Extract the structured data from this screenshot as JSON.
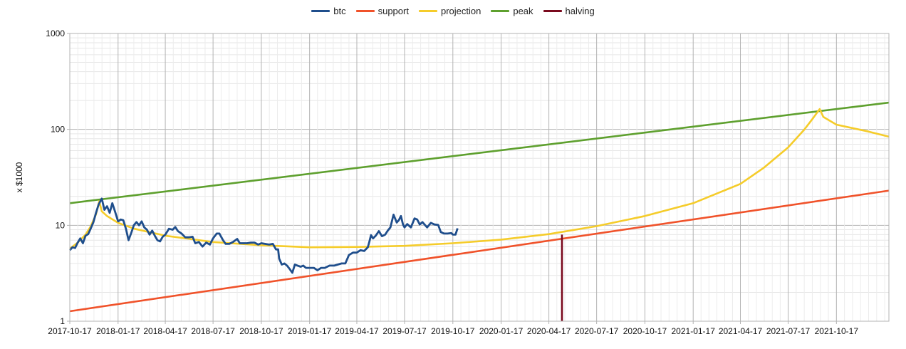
{
  "chart_data": {
    "type": "line",
    "title": "",
    "xlabel": "",
    "ylabel": "x $1000",
    "yscale": "log",
    "ylim": [
      1,
      1000
    ],
    "xlim": [
      "2017-10-17",
      "2022-01-25"
    ],
    "grid": true,
    "legend": "top-center",
    "x_tick_labels": [
      "2017-10-17",
      "2018-01-17",
      "2018-04-17",
      "2018-07-17",
      "2018-10-17",
      "2019-01-17",
      "2019-04-17",
      "2019-07-17",
      "2019-10-17",
      "2020-01-17",
      "2020-04-17",
      "2020-07-17",
      "2020-10-17",
      "2021-01-17",
      "2021-04-17",
      "2021-07-17",
      "2021-10-17"
    ],
    "y_tick_labels": [
      "1",
      "10",
      "100",
      "1000"
    ],
    "legend_entries": [
      {
        "key": "btc",
        "label": "btc",
        "color": "#1f4e8c"
      },
      {
        "key": "support",
        "label": "support",
        "color": "#f0522a"
      },
      {
        "key": "projection",
        "label": "projection",
        "color": "#f5cc2a"
      },
      {
        "key": "peak",
        "label": "peak",
        "color": "#5ea02e"
      },
      {
        "key": "halving",
        "label": "halving",
        "color": "#7a0a1e"
      }
    ],
    "series": [
      {
        "name": "btc",
        "color": "#1f4e8c",
        "points": [
          [
            "2017-10-17",
            5.5
          ],
          [
            "2017-10-22",
            5.9
          ],
          [
            "2017-10-27",
            5.8
          ],
          [
            "2017-11-01",
            6.6
          ],
          [
            "2017-11-06",
            7.3
          ],
          [
            "2017-11-11",
            6.5
          ],
          [
            "2017-11-16",
            7.8
          ],
          [
            "2017-11-21",
            8.1
          ],
          [
            "2017-11-26",
            9.3
          ],
          [
            "2017-12-01",
            10.8
          ],
          [
            "2017-12-06",
            13.5
          ],
          [
            "2017-12-11",
            16.5
          ],
          [
            "2017-12-17",
            19.0
          ],
          [
            "2017-12-22",
            14.5
          ],
          [
            "2017-12-27",
            15.8
          ],
          [
            "2018-01-01",
            13.5
          ],
          [
            "2018-01-06",
            17.0
          ],
          [
            "2018-01-11",
            14.0
          ],
          [
            "2018-01-17",
            11.0
          ],
          [
            "2018-01-22",
            11.5
          ],
          [
            "2018-01-27",
            11.3
          ],
          [
            "2018-02-01",
            9.2
          ],
          [
            "2018-02-06",
            7.0
          ],
          [
            "2018-02-11",
            8.3
          ],
          [
            "2018-02-16",
            10.0
          ],
          [
            "2018-02-21",
            10.8
          ],
          [
            "2018-02-26",
            10.0
          ],
          [
            "2018-03-03",
            11.0
          ],
          [
            "2018-03-08",
            9.5
          ],
          [
            "2018-03-13",
            9.0
          ],
          [
            "2018-03-18",
            8.0
          ],
          [
            "2018-03-23",
            8.8
          ],
          [
            "2018-03-28",
            7.8
          ],
          [
            "2018-04-02",
            7.0
          ],
          [
            "2018-04-07",
            6.8
          ],
          [
            "2018-04-12",
            7.6
          ],
          [
            "2018-04-17",
            8.0
          ],
          [
            "2018-04-24",
            9.2
          ],
          [
            "2018-05-01",
            9.0
          ],
          [
            "2018-05-06",
            9.6
          ],
          [
            "2018-05-11",
            8.7
          ],
          [
            "2018-05-18",
            8.2
          ],
          [
            "2018-05-25",
            7.5
          ],
          [
            "2018-06-01",
            7.5
          ],
          [
            "2018-06-08",
            7.6
          ],
          [
            "2018-06-13",
            6.5
          ],
          [
            "2018-06-20",
            6.7
          ],
          [
            "2018-06-27",
            6.0
          ],
          [
            "2018-07-04",
            6.6
          ],
          [
            "2018-07-11",
            6.3
          ],
          [
            "2018-07-17",
            7.3
          ],
          [
            "2018-07-24",
            8.2
          ],
          [
            "2018-07-29",
            8.2
          ],
          [
            "2018-08-05",
            7.0
          ],
          [
            "2018-08-10",
            6.4
          ],
          [
            "2018-08-17",
            6.4
          ],
          [
            "2018-08-24",
            6.7
          ],
          [
            "2018-09-01",
            7.2
          ],
          [
            "2018-09-06",
            6.5
          ],
          [
            "2018-09-13",
            6.5
          ],
          [
            "2018-09-20",
            6.5
          ],
          [
            "2018-09-27",
            6.6
          ],
          [
            "2018-10-04",
            6.6
          ],
          [
            "2018-10-11",
            6.3
          ],
          [
            "2018-10-17",
            6.5
          ],
          [
            "2018-10-24",
            6.4
          ],
          [
            "2018-11-01",
            6.3
          ],
          [
            "2018-11-08",
            6.4
          ],
          [
            "2018-11-14",
            5.6
          ],
          [
            "2018-11-18",
            5.6
          ],
          [
            "2018-11-20",
            4.5
          ],
          [
            "2018-11-25",
            3.9
          ],
          [
            "2018-11-30",
            4.0
          ],
          [
            "2018-12-05",
            3.8
          ],
          [
            "2018-12-10",
            3.5
          ],
          [
            "2018-12-15",
            3.2
          ],
          [
            "2018-12-20",
            3.9
          ],
          [
            "2018-12-25",
            3.8
          ],
          [
            "2018-12-31",
            3.7
          ],
          [
            "2019-01-05",
            3.8
          ],
          [
            "2019-01-10",
            3.6
          ],
          [
            "2019-01-17",
            3.6
          ],
          [
            "2019-01-25",
            3.6
          ],
          [
            "2019-02-01",
            3.4
          ],
          [
            "2019-02-08",
            3.6
          ],
          [
            "2019-02-15",
            3.6
          ],
          [
            "2019-02-24",
            3.8
          ],
          [
            "2019-03-05",
            3.8
          ],
          [
            "2019-03-12",
            3.9
          ],
          [
            "2019-03-19",
            4.0
          ],
          [
            "2019-03-26",
            4.0
          ],
          [
            "2019-04-02",
            4.9
          ],
          [
            "2019-04-10",
            5.2
          ],
          [
            "2019-04-17",
            5.2
          ],
          [
            "2019-04-24",
            5.5
          ],
          [
            "2019-05-01",
            5.4
          ],
          [
            "2019-05-08",
            5.9
          ],
          [
            "2019-05-11",
            6.8
          ],
          [
            "2019-05-14",
            7.9
          ],
          [
            "2019-05-18",
            7.3
          ],
          [
            "2019-05-23",
            7.8
          ],
          [
            "2019-05-29",
            8.7
          ],
          [
            "2019-06-04",
            7.7
          ],
          [
            "2019-06-10",
            8.0
          ],
          [
            "2019-06-15",
            8.8
          ],
          [
            "2019-06-20",
            9.5
          ],
          [
            "2019-06-26",
            12.9
          ],
          [
            "2019-07-02",
            10.7
          ],
          [
            "2019-07-06",
            11.3
          ],
          [
            "2019-07-10",
            12.5
          ],
          [
            "2019-07-14",
            10.2
          ],
          [
            "2019-07-17",
            9.5
          ],
          [
            "2019-07-22",
            10.3
          ],
          [
            "2019-07-29",
            9.5
          ],
          [
            "2019-08-05",
            11.8
          ],
          [
            "2019-08-10",
            11.5
          ],
          [
            "2019-08-15",
            10.2
          ],
          [
            "2019-08-20",
            10.8
          ],
          [
            "2019-08-29",
            9.5
          ],
          [
            "2019-09-05",
            10.6
          ],
          [
            "2019-09-12",
            10.2
          ],
          [
            "2019-09-19",
            10.1
          ],
          [
            "2019-09-24",
            8.5
          ],
          [
            "2019-09-30",
            8.2
          ],
          [
            "2019-10-07",
            8.2
          ],
          [
            "2019-10-14",
            8.3
          ],
          [
            "2019-10-17",
            8.0
          ],
          [
            "2019-10-22",
            8.0
          ],
          [
            "2019-10-26",
            9.3
          ]
        ]
      },
      {
        "name": "support",
        "color": "#f0522a",
        "points": [
          [
            "2017-10-17",
            1.27
          ],
          [
            "2022-01-25",
            23.0
          ]
        ]
      },
      {
        "name": "projection",
        "color": "#f5cc2a",
        "points": [
          [
            "2017-10-17",
            5.7
          ],
          [
            "2017-11-01",
            6.6
          ],
          [
            "2017-11-16",
            8.0
          ],
          [
            "2017-11-26",
            9.8
          ],
          [
            "2017-12-06",
            13.0
          ],
          [
            "2017-12-12",
            17.8
          ],
          [
            "2017-12-17",
            14.0
          ],
          [
            "2017-12-27",
            12.5
          ],
          [
            "2018-01-17",
            10.6
          ],
          [
            "2018-02-17",
            9.2
          ],
          [
            "2018-04-17",
            7.8
          ],
          [
            "2018-07-17",
            6.7
          ],
          [
            "2018-10-17",
            6.2
          ],
          [
            "2019-01-17",
            5.9
          ],
          [
            "2019-04-17",
            5.95
          ],
          [
            "2019-07-17",
            6.1
          ],
          [
            "2019-10-17",
            6.5
          ],
          [
            "2020-01-17",
            7.1
          ],
          [
            "2020-04-17",
            8.1
          ],
          [
            "2020-07-17",
            9.8
          ],
          [
            "2020-10-17",
            12.5
          ],
          [
            "2021-01-17",
            17.0
          ],
          [
            "2021-04-17",
            27.0
          ],
          [
            "2021-06-01",
            40.0
          ],
          [
            "2021-07-17",
            65.0
          ],
          [
            "2021-08-17",
            100.0
          ],
          [
            "2021-09-02",
            130.0
          ],
          [
            "2021-09-15",
            163.0
          ],
          [
            "2021-09-22",
            135.0
          ],
          [
            "2021-10-17",
            112.0
          ],
          [
            "2021-12-17",
            95.0
          ],
          [
            "2022-01-25",
            84.0
          ]
        ]
      },
      {
        "name": "peak",
        "color": "#5ea02e",
        "points": [
          [
            "2017-10-17",
            17.0
          ],
          [
            "2022-01-25",
            190.0
          ]
        ]
      },
      {
        "name": "halving",
        "color": "#7a0a1e",
        "points": [
          [
            "2020-05-12",
            1.0
          ],
          [
            "2020-05-12",
            8.0
          ]
        ]
      }
    ]
  }
}
